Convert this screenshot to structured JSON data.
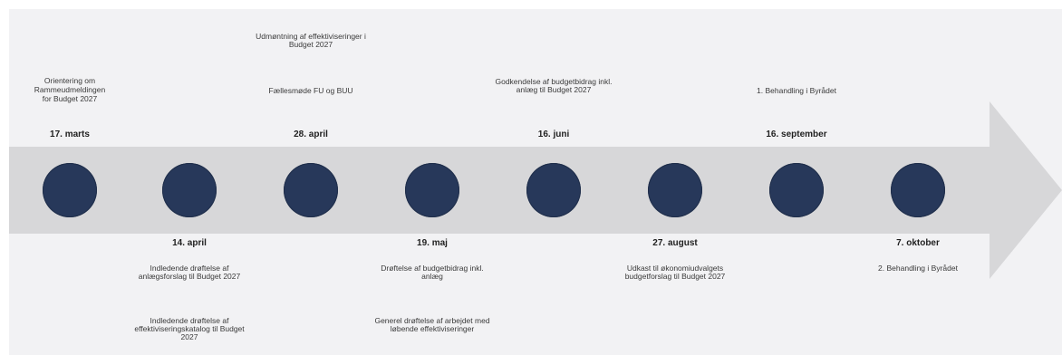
{
  "timeline": {
    "colors": {
      "background": "#f2f2f4",
      "arrow": "#d7d7d9",
      "node": "#27385a",
      "text": "#3a3a3a"
    },
    "milestones": [
      {
        "date": "17. marts",
        "position": "top",
        "texts": [
          "Orientering om",
          "Rammeudmeldingen",
          "for Budget 2027"
        ]
      },
      {
        "date": "14. april",
        "position": "bottom",
        "texts": [
          "Indledende drøftelse af anlægsforslag til Budget 2027",
          "Indledende drøftelse af effektiviseringskatalog til Budget 2027"
        ]
      },
      {
        "date": "28. april",
        "position": "top",
        "texts": [
          "Udmøntning af effektiviseringer i Budget 2027",
          "Fællesmøde FU og BUU"
        ]
      },
      {
        "date": "19. maj",
        "position": "bottom",
        "texts": [
          "Drøftelse af budgetbidrag inkl. anlæg",
          "Generel drøftelse af arbejdet med løbende effektiviseringer"
        ]
      },
      {
        "date": "16. juni",
        "position": "top",
        "texts": [
          "Godkendelse af budgetbidrag inkl. anlæg til Budget 2027"
        ]
      },
      {
        "date": "27. august",
        "position": "bottom",
        "texts": [
          "Udkast til økonomiudvalgets budgetforslag til Budget 2027"
        ]
      },
      {
        "date": "16. september",
        "position": "top",
        "texts": [
          "1. Behandling i Byrådet"
        ]
      },
      {
        "date": "7. oktober",
        "position": "bottom",
        "texts": [
          "2. Behandling i Byrådet"
        ]
      }
    ]
  }
}
